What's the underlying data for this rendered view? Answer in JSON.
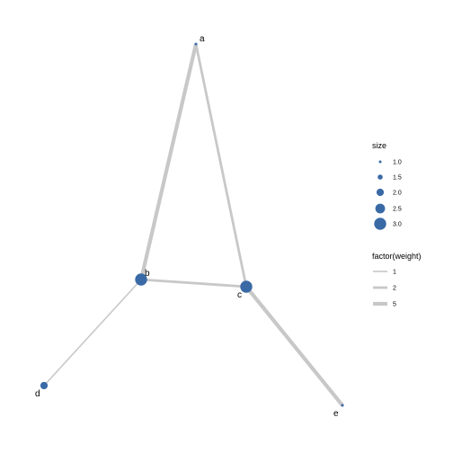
{
  "nodes": [
    {
      "id": "a",
      "label": "a",
      "size": 1.0
    },
    {
      "id": "b",
      "label": "b",
      "size": 3.0
    },
    {
      "id": "c",
      "label": "c",
      "size": 3.0
    },
    {
      "id": "d",
      "label": "d",
      "size": 2.0
    },
    {
      "id": "e",
      "label": "e",
      "size": 1.0
    }
  ],
  "edges": [
    {
      "from": "a",
      "to": "b",
      "weight": 5
    },
    {
      "from": "a",
      "to": "c",
      "weight": 2
    },
    {
      "from": "b",
      "to": "c",
      "weight": 2
    },
    {
      "from": "b",
      "to": "d",
      "weight": 1
    },
    {
      "from": "c",
      "to": "e",
      "weight": 5
    }
  ],
  "legend": {
    "size": {
      "title": "size",
      "entries": [
        {
          "label": "1.0",
          "value": 1.0
        },
        {
          "label": "1.5",
          "value": 1.5
        },
        {
          "label": "2.0",
          "value": 2.0
        },
        {
          "label": "2.5",
          "value": 2.5
        },
        {
          "label": "3.0",
          "value": 3.0
        }
      ]
    },
    "weight": {
      "title": "factor(weight)",
      "entries": [
        {
          "label": "1",
          "value": 1
        },
        {
          "label": "2",
          "value": 2
        },
        {
          "label": "5",
          "value": 5
        }
      ]
    }
  },
  "colors": {
    "node": "#3a6aa6",
    "edge": "#c8c8c8",
    "text": "#000000",
    "background": "#ffffff"
  }
}
